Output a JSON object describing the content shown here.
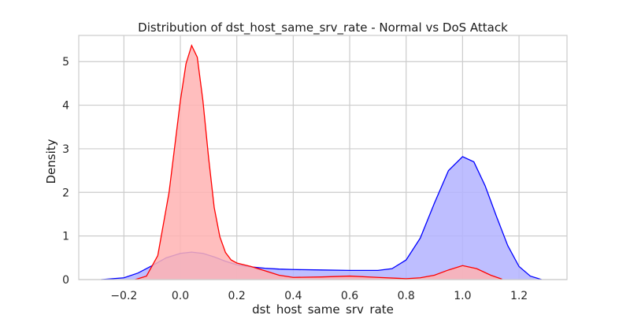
{
  "chart_data": {
    "type": "area",
    "title": "Distribution of dst_host_same_srv_rate - Normal vs DoS Attack",
    "xlabel": "dst_host_same_srv_rate",
    "ylabel": "Density",
    "xlim": [
      -0.36,
      1.37
    ],
    "ylim": [
      0,
      5.6
    ],
    "x_ticks": [
      -0.2,
      0.0,
      0.2,
      0.4,
      0.6,
      0.8,
      1.0,
      1.2
    ],
    "x_tick_labels": [
      "−0.2",
      "0.0",
      "0.2",
      "0.4",
      "0.6",
      "0.8",
      "1.0",
      "1.2"
    ],
    "y_ticks": [
      0,
      1,
      2,
      3,
      4,
      5
    ],
    "y_tick_labels": [
      "0",
      "1",
      "2",
      "3",
      "4",
      "5"
    ],
    "grid": true,
    "series": [
      {
        "color": "#0000ff",
        "fill": "#b3b3ff",
        "x": [
          -0.28,
          -0.2,
          -0.15,
          -0.1,
          -0.05,
          0.0,
          0.04,
          0.08,
          0.12,
          0.16,
          0.2,
          0.25,
          0.3,
          0.35,
          0.4,
          0.5,
          0.6,
          0.7,
          0.75,
          0.8,
          0.85,
          0.9,
          0.95,
          1.0,
          1.04,
          1.08,
          1.12,
          1.16,
          1.2,
          1.24,
          1.28
        ],
        "values": [
          0.0,
          0.04,
          0.15,
          0.32,
          0.5,
          0.6,
          0.63,
          0.6,
          0.52,
          0.42,
          0.34,
          0.29,
          0.26,
          0.24,
          0.23,
          0.22,
          0.21,
          0.21,
          0.25,
          0.45,
          0.95,
          1.75,
          2.5,
          2.82,
          2.7,
          2.15,
          1.45,
          0.78,
          0.3,
          0.08,
          0.0
        ]
      },
      {
        "color": "#ff0000",
        "fill": "#ffb3b3",
        "x": [
          -0.16,
          -0.12,
          -0.08,
          -0.04,
          0.0,
          0.02,
          0.04,
          0.06,
          0.08,
          0.1,
          0.12,
          0.14,
          0.16,
          0.18,
          0.2,
          0.25,
          0.3,
          0.35,
          0.4,
          0.5,
          0.6,
          0.7,
          0.8,
          0.85,
          0.9,
          0.95,
          1.0,
          1.05,
          1.1,
          1.14
        ],
        "values": [
          0.0,
          0.08,
          0.55,
          2.0,
          4.1,
          4.95,
          5.37,
          5.1,
          4.1,
          2.8,
          1.65,
          0.98,
          0.62,
          0.45,
          0.38,
          0.3,
          0.2,
          0.1,
          0.05,
          0.06,
          0.08,
          0.05,
          0.02,
          0.04,
          0.1,
          0.22,
          0.32,
          0.25,
          0.1,
          0.01
        ]
      }
    ]
  }
}
